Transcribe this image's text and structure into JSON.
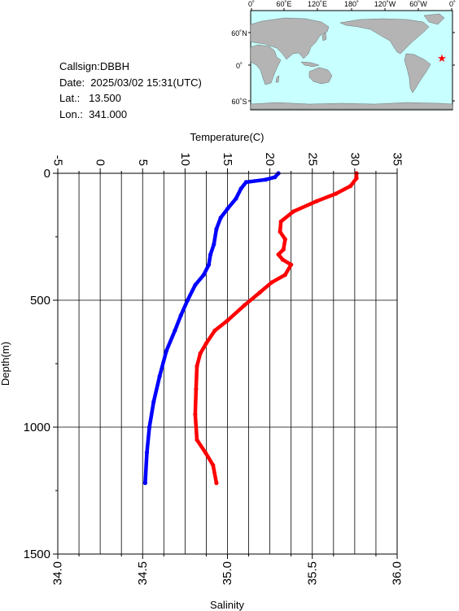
{
  "info": {
    "callsign": "Callsign:DBBH",
    "date": "Date:  2025/03/02 15:31(UTC)",
    "lat": "Lat.:   13.500",
    "lon": "Lon.:  341.000"
  },
  "map": {
    "lon_labels": [
      "0˚",
      "60˚E",
      "120˚E",
      "180˚",
      "120˚W",
      "60˚W",
      "0˚"
    ],
    "lat_labels": [
      "60˚N",
      "0˚",
      "60˚S"
    ],
    "marker": {
      "lon": 341.0,
      "lat": 13.5
    },
    "colors": {
      "ocean": "#c8ffff",
      "land": "#b4b4b4",
      "marker": "#ff0000"
    }
  },
  "chart_data": {
    "type": "line",
    "title": "",
    "ylabel": "Depth(m)",
    "ylim": [
      1500,
      0
    ],
    "yticks": [
      0,
      500,
      1000,
      1500
    ],
    "grid": true,
    "top_axis": {
      "label": "Temperature(C)",
      "lim": [
        -5,
        35
      ],
      "ticks": [
        -5,
        0,
        5,
        10,
        15,
        20,
        25,
        30,
        35
      ]
    },
    "bottom_axis": {
      "label": "Salinity",
      "lim": [
        34.0,
        36.0
      ],
      "ticks": [
        "34.0",
        "34.5",
        "35.0",
        "35.5",
        "36.0"
      ]
    },
    "series": [
      {
        "color": "#0000ff",
        "axis": "top",
        "points": [
          [
            21.0,
            0
          ],
          [
            20.6,
            15
          ],
          [
            19.5,
            25
          ],
          [
            17.2,
            35
          ],
          [
            16.6,
            60
          ],
          [
            16.0,
            100
          ],
          [
            15.0,
            140
          ],
          [
            14.2,
            175
          ],
          [
            13.7,
            220
          ],
          [
            13.4,
            280
          ],
          [
            13.0,
            320
          ],
          [
            12.8,
            360
          ],
          [
            12.2,
            400
          ],
          [
            11.2,
            440
          ],
          [
            10.3,
            500
          ],
          [
            9.5,
            560
          ],
          [
            8.8,
            620
          ],
          [
            7.8,
            700
          ],
          [
            7.0,
            800
          ],
          [
            6.3,
            900
          ],
          [
            5.8,
            1000
          ],
          [
            5.5,
            1100
          ],
          [
            5.3,
            1220
          ]
        ]
      },
      {
        "color": "#ff0000",
        "axis": "top",
        "points": [
          [
            30.2,
            0
          ],
          [
            30.2,
            20
          ],
          [
            29.5,
            50
          ],
          [
            27.8,
            80
          ],
          [
            25.5,
            110
          ],
          [
            22.8,
            150
          ],
          [
            21.3,
            190
          ],
          [
            21.2,
            230
          ],
          [
            21.8,
            260
          ],
          [
            21.6,
            300
          ],
          [
            21.0,
            320
          ],
          [
            21.5,
            340
          ],
          [
            22.5,
            360
          ],
          [
            21.8,
            400
          ],
          [
            20.2,
            430
          ],
          [
            18.8,
            470
          ],
          [
            17.0,
            520
          ],
          [
            15.0,
            580
          ],
          [
            13.5,
            620
          ],
          [
            12.5,
            670
          ],
          [
            11.8,
            710
          ],
          [
            11.4,
            760
          ],
          [
            11.3,
            850
          ],
          [
            11.2,
            950
          ],
          [
            11.4,
            1050
          ],
          [
            12.4,
            1100
          ],
          [
            13.3,
            1150
          ],
          [
            13.7,
            1220
          ]
        ]
      }
    ]
  }
}
